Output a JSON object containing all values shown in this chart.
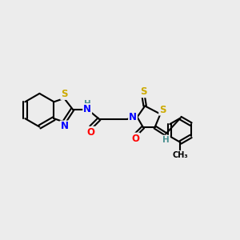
{
  "bg_color": "#ececec",
  "bond_color": "#000000",
  "atom_colors": {
    "S": "#ccaa00",
    "N": "#0000ff",
    "O": "#ff0000",
    "H": "#4a9090",
    "C": "#000000"
  },
  "bond_width": 1.5,
  "font_size_atoms": 8.5,
  "font_size_small": 7.0
}
